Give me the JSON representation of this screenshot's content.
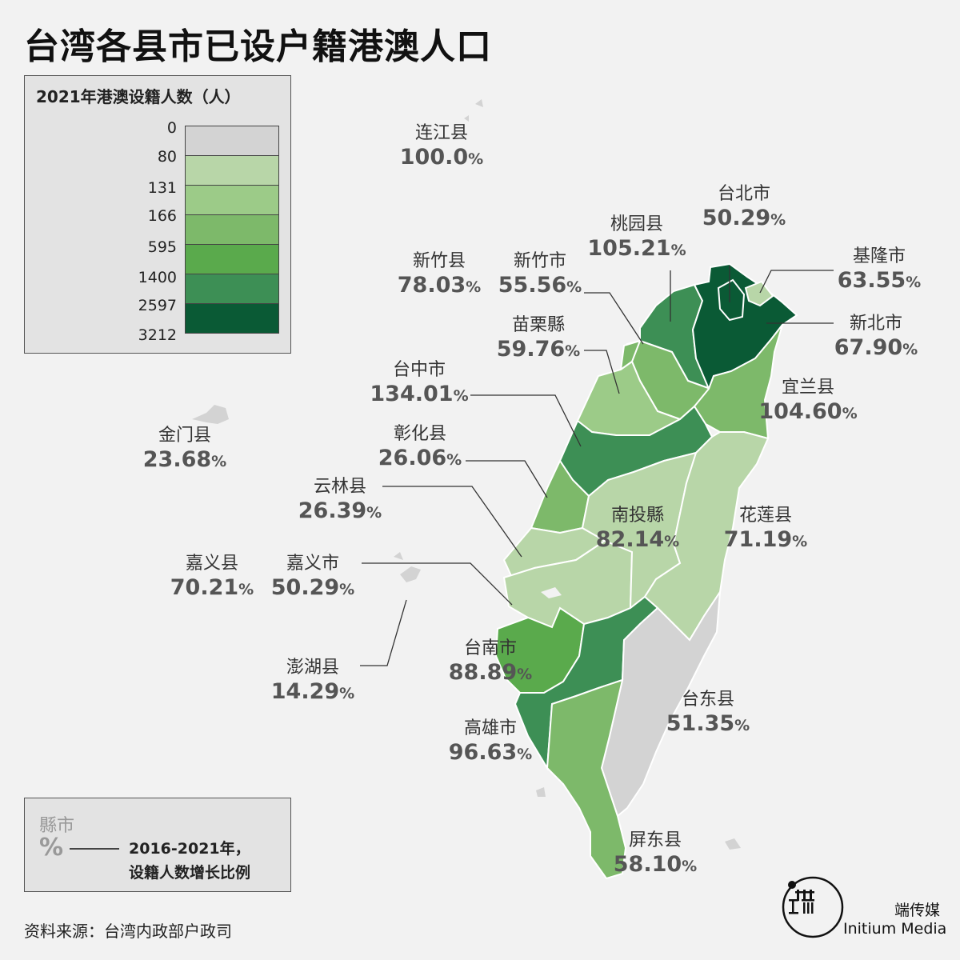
{
  "title": "台湾各县市已设户籍港澳人口",
  "legend": {
    "title": "2021年港澳设籍人数（人）",
    "values": [
      "0",
      "80",
      "131",
      "166",
      "595",
      "1400",
      "2597",
      "3212"
    ],
    "colors": [
      "#d3d3d3",
      "#b8d6a8",
      "#9ccb88",
      "#7db96a",
      "#5aaa4c",
      "#3d8f55",
      "#0a5a35"
    ]
  },
  "regions": [
    {
      "name": "连江县",
      "pct": "100.0",
      "sym": "%"
    },
    {
      "name": "台北市",
      "pct": "50.29",
      "sym": "%"
    },
    {
      "name": "桃园县",
      "pct": "105.21",
      "sym": "%"
    },
    {
      "name": "新竹县",
      "pct": "78.03",
      "sym": "%"
    },
    {
      "name": "新竹市",
      "pct": "55.56",
      "sym": "%"
    },
    {
      "name": "基隆市",
      "pct": "63.55",
      "sym": "%"
    },
    {
      "name": "新北市",
      "pct": "67.90",
      "sym": "%"
    },
    {
      "name": "苗栗縣",
      "pct": "59.76",
      "sym": "%"
    },
    {
      "name": "台中市",
      "pct": "134.01",
      "sym": "%"
    },
    {
      "name": "宜兰县",
      "pct": "104.60",
      "sym": "%"
    },
    {
      "name": "金门县",
      "pct": "23.68",
      "sym": "%"
    },
    {
      "name": "彰化县",
      "pct": "26.06",
      "sym": "%"
    },
    {
      "name": "云林县",
      "pct": "26.39",
      "sym": "%"
    },
    {
      "name": "南投縣",
      "pct": "82.14",
      "sym": "%"
    },
    {
      "name": "花莲县",
      "pct": "71.19",
      "sym": "%"
    },
    {
      "name": "嘉义县",
      "pct": "70.21",
      "sym": "%"
    },
    {
      "name": "嘉义市",
      "pct": "50.29",
      "sym": "%"
    },
    {
      "name": "澎湖县",
      "pct": "14.29",
      "sym": "%"
    },
    {
      "name": "台南市",
      "pct": "88.89",
      "sym": "%"
    },
    {
      "name": "台东县",
      "pct": "51.35",
      "sym": "%"
    },
    {
      "name": "高雄市",
      "pct": "96.63",
      "sym": "%"
    },
    {
      "name": "屏东县",
      "pct": "58.10",
      "sym": "%"
    }
  ],
  "key": {
    "line1": "縣市",
    "line2": "%",
    "line3": "2016-2021年，",
    "line4": "设籍人数增长比例"
  },
  "source": "资料来源：台湾内政部户政司",
  "brand": {
    "name_cn": "端传媒",
    "name_en": "Initium Media"
  }
}
